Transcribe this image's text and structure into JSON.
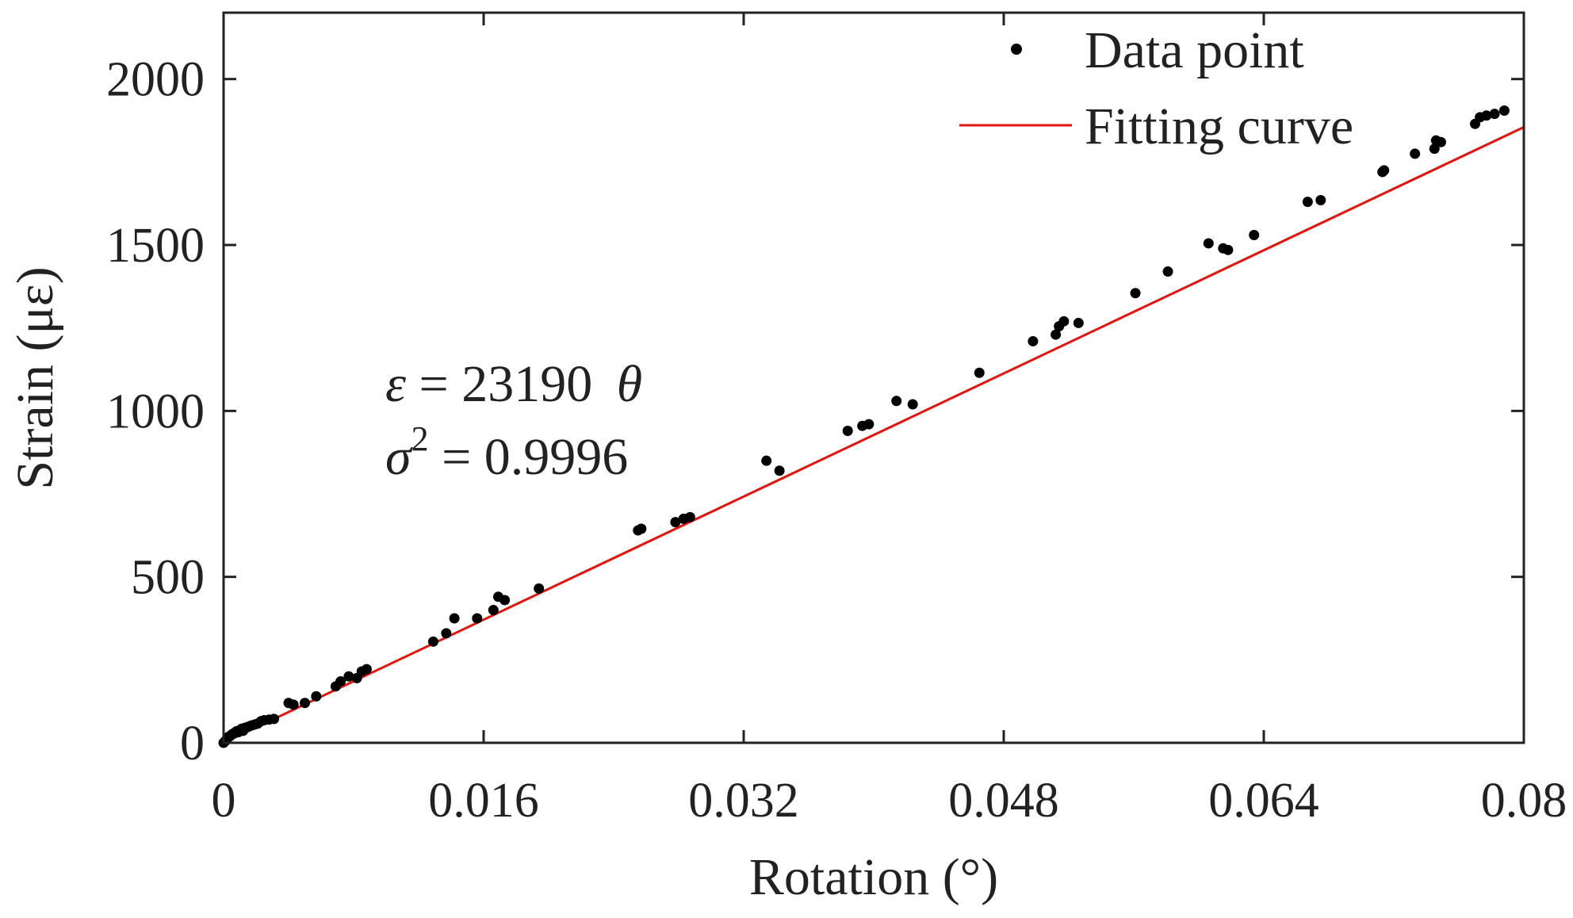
{
  "chart_data": {
    "type": "scatter",
    "title": "",
    "xlabel": "Rotation (°)",
    "ylabel": "Strain (με)",
    "xlim": [
      0,
      0.08
    ],
    "ylim": [
      0,
      2200
    ],
    "xticks": [
      0,
      0.016,
      0.032,
      0.048,
      0.064,
      0.08
    ],
    "xtick_labels": [
      "0",
      "0.016",
      "0.032",
      "0.048",
      "0.064",
      "0.08"
    ],
    "yticks": [
      0,
      500,
      1000,
      1500,
      2000
    ],
    "ytick_labels": [
      "0",
      "500",
      "1000",
      "1500",
      "2000"
    ],
    "grid": false,
    "legend": {
      "position": "top-right",
      "entries": [
        {
          "name": "Data point",
          "marker": "dot",
          "color": "#000000"
        },
        {
          "name": "Fitting curve",
          "marker": "line",
          "color": "#e8120c"
        }
      ]
    },
    "fit": {
      "slope": 23190,
      "intercept": 0,
      "x_range": [
        0,
        0.08
      ],
      "color": "#e8120c"
    },
    "annotation": {
      "equation": {
        "lhs": "ε",
        "eq": " = 23190 ",
        "var": "θ"
      },
      "r2": {
        "lhs": "σ",
        "exp": "2",
        "eq": " = 0.9996"
      }
    },
    "series": [
      {
        "name": "Data point",
        "points": [
          [
            0.0,
            0
          ],
          [
            0.0001,
            5
          ],
          [
            0.0002,
            12
          ],
          [
            0.0003,
            18
          ],
          [
            0.0004,
            20
          ],
          [
            0.0005,
            25
          ],
          [
            0.0006,
            28
          ],
          [
            0.0007,
            30
          ],
          [
            0.0008,
            35
          ],
          [
            0.0009,
            32
          ],
          [
            0.001,
            38
          ],
          [
            0.0011,
            42
          ],
          [
            0.0012,
            36
          ],
          [
            0.0013,
            45
          ],
          [
            0.0015,
            48
          ],
          [
            0.0017,
            52
          ],
          [
            0.0019,
            55
          ],
          [
            0.0021,
            58
          ],
          [
            0.0023,
            65
          ],
          [
            0.0025,
            68
          ],
          [
            0.0028,
            70
          ],
          [
            0.0031,
            72
          ],
          [
            0.004,
            120
          ],
          [
            0.0043,
            115
          ],
          [
            0.005,
            120
          ],
          [
            0.0057,
            140
          ],
          [
            0.0069,
            170
          ],
          [
            0.0072,
            185
          ],
          [
            0.0077,
            200
          ],
          [
            0.0082,
            195
          ],
          [
            0.0085,
            215
          ],
          [
            0.0088,
            222
          ],
          [
            0.0129,
            305
          ],
          [
            0.0137,
            330
          ],
          [
            0.0142,
            375
          ],
          [
            0.0156,
            375
          ],
          [
            0.0166,
            400
          ],
          [
            0.0169,
            440
          ],
          [
            0.0173,
            430
          ],
          [
            0.0194,
            465
          ],
          [
            0.0255,
            640
          ],
          [
            0.0257,
            645
          ],
          [
            0.0278,
            665
          ],
          [
            0.0283,
            675
          ],
          [
            0.0287,
            680
          ],
          [
            0.0334,
            850
          ],
          [
            0.0342,
            820
          ],
          [
            0.0384,
            940
          ],
          [
            0.0393,
            955
          ],
          [
            0.0397,
            960
          ],
          [
            0.0414,
            1030
          ],
          [
            0.0424,
            1020
          ],
          [
            0.0465,
            1115
          ],
          [
            0.0498,
            1210
          ],
          [
            0.0512,
            1230
          ],
          [
            0.0514,
            1255
          ],
          [
            0.0517,
            1270
          ],
          [
            0.0526,
            1265
          ],
          [
            0.0561,
            1355
          ],
          [
            0.0581,
            1420
          ],
          [
            0.0606,
            1505
          ],
          [
            0.0615,
            1490
          ],
          [
            0.0618,
            1485
          ],
          [
            0.0634,
            1530
          ],
          [
            0.0667,
            1630
          ],
          [
            0.0675,
            1635
          ],
          [
            0.0713,
            1720
          ],
          [
            0.0714,
            1725
          ],
          [
            0.0733,
            1775
          ],
          [
            0.0745,
            1790
          ],
          [
            0.0746,
            1815
          ],
          [
            0.0749,
            1810
          ],
          [
            0.077,
            1865
          ],
          [
            0.0773,
            1885
          ],
          [
            0.0777,
            1890
          ],
          [
            0.0782,
            1895
          ],
          [
            0.0788,
            1905
          ]
        ]
      }
    ]
  }
}
